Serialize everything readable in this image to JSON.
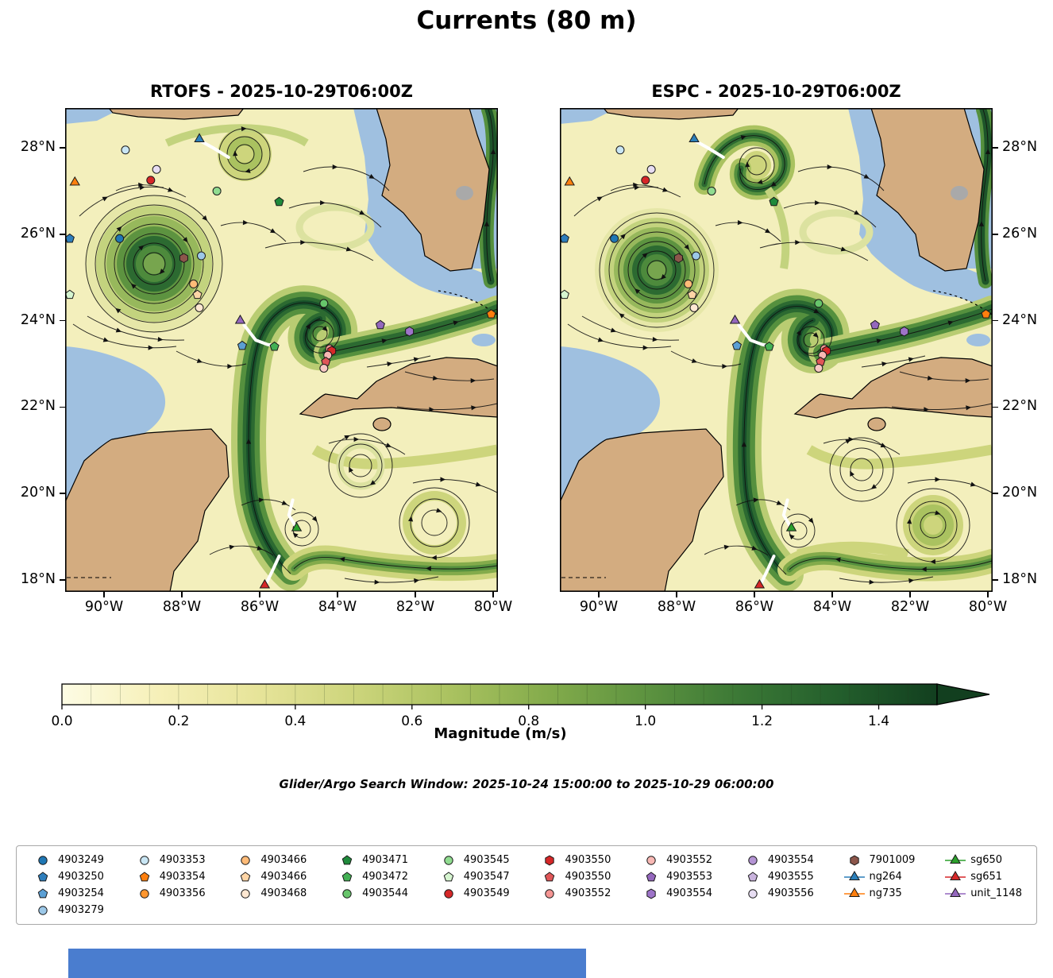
{
  "title": "Currents (80 m)",
  "panels": [
    {
      "id": "rtofs",
      "title": "RTOFS - 2025-10-29T06:00Z"
    },
    {
      "id": "espc",
      "title": "ESPC - 2025-10-29T06:00Z"
    }
  ],
  "axes": {
    "lon_ticks": [
      {
        "label": "90°W",
        "lon": -90
      },
      {
        "label": "88°W",
        "lon": -88
      },
      {
        "label": "86°W",
        "lon": -86
      },
      {
        "label": "84°W",
        "lon": -84
      },
      {
        "label": "82°W",
        "lon": -82
      },
      {
        "label": "80°W",
        "lon": -80
      }
    ],
    "lat_ticks": [
      {
        "label": "28°N",
        "lat": 28
      },
      {
        "label": "26°N",
        "lat": 26
      },
      {
        "label": "24°N",
        "lat": 24
      },
      {
        "label": "22°N",
        "lat": 22
      },
      {
        "label": "20°N",
        "lat": 20
      },
      {
        "label": "18°N",
        "lat": 18
      }
    ]
  },
  "colorbar": {
    "label": "Magnitude (m/s)",
    "vmin": 0.0,
    "vmax": 1.5,
    "ticks": [
      {
        "label": "0.0",
        "value": 0.0
      },
      {
        "label": "0.2",
        "value": 0.2
      },
      {
        "label": "0.4",
        "value": 0.4
      },
      {
        "label": "0.6",
        "value": 0.6
      },
      {
        "label": "0.8",
        "value": 0.8
      },
      {
        "label": "1.0",
        "value": 1.0
      },
      {
        "label": "1.2",
        "value": 1.2
      },
      {
        "label": "1.4",
        "value": 1.4
      }
    ],
    "colors": [
      "#fdfce4",
      "#f6f0b8",
      "#e7e49a",
      "#cdd57c",
      "#aac260",
      "#83ab4b",
      "#5d9340",
      "#3a7735",
      "#235e2c",
      "#123f1f"
    ]
  },
  "search_window": "Glider/Argo Search Window: 2025-10-24 15:00:00 to 2025-10-29 06:00:00",
  "map_colors": {
    "ocean_mask": "#9fc0e0",
    "land": "#d3ac80",
    "lake": "#a9a9a9",
    "low_speed": "#f3efbc",
    "high_speed": "#17502a"
  },
  "legend": {
    "columns": [
      [
        {
          "label": "4903249",
          "marker": "circle",
          "color": "#1f77b4"
        },
        {
          "label": "4903250",
          "marker": "pentagon",
          "color": "#2e7ebc"
        },
        {
          "label": "4903254",
          "marker": "pentagon",
          "color": "#5b9fd4"
        },
        {
          "label": "4903279",
          "marker": "circle",
          "color": "#9cc8e8"
        }
      ],
      [
        {
          "label": "4903353",
          "marker": "circle",
          "color": "#c9e6f4"
        },
        {
          "label": "4903354",
          "marker": "pentagon",
          "color": "#ff7f0e"
        },
        {
          "label": "4903356",
          "marker": "circle",
          "color": "#ff962e"
        }
      ],
      [
        {
          "label": "4903466",
          "marker": "circle",
          "color": "#ffbb78"
        },
        {
          "label": "4903466",
          "marker": "pentagon",
          "color": "#ffd5a6"
        },
        {
          "label": "4903468",
          "marker": "circle",
          "color": "#ffe8d2"
        }
      ],
      [
        {
          "label": "4903471",
          "marker": "pentagon",
          "color": "#1f8a3b"
        },
        {
          "label": "4903472",
          "marker": "pentagon",
          "color": "#43b054"
        },
        {
          "label": "4903544",
          "marker": "circle",
          "color": "#67c56b"
        }
      ],
      [
        {
          "label": "4903545",
          "marker": "circle",
          "color": "#90dc90"
        },
        {
          "label": "4903547",
          "marker": "pentagon",
          "color": "#d6f5d0"
        },
        {
          "label": "4903549",
          "marker": "circle",
          "color": "#d62728"
        }
      ],
      [
        {
          "label": "4903550",
          "marker": "hexagon",
          "color": "#d62728"
        },
        {
          "label": "4903550",
          "marker": "pentagon",
          "color": "#e05658"
        },
        {
          "label": "4903552",
          "marker": "circle",
          "color": "#f59593"
        }
      ],
      [
        {
          "label": "4903552",
          "marker": "circle",
          "color": "#f8b8b4"
        },
        {
          "label": "4903553",
          "marker": "pentagon",
          "color": "#9467bd"
        },
        {
          "label": "4903554",
          "marker": "hexagon",
          "color": "#9e74c9"
        }
      ],
      [
        {
          "label": "4903554",
          "marker": "circle",
          "color": "#b494d4"
        },
        {
          "label": "4903555",
          "marker": "pentagon",
          "color": "#c9b3dd"
        },
        {
          "label": "4903556",
          "marker": "circle",
          "color": "#e7ddf2"
        }
      ],
      [
        {
          "label": "7901009",
          "marker": "hexagon",
          "color": "#8c564b"
        },
        {
          "label": "ng264",
          "marker": "triangle",
          "color": "#2b7fba",
          "line": true
        },
        {
          "label": "ng735",
          "marker": "triangle",
          "color": "#ff7f0e",
          "line": true
        }
      ],
      [
        {
          "label": "sg650",
          "marker": "triangle",
          "color": "#2ca02c",
          "line": true
        },
        {
          "label": "sg651",
          "marker": "triangle",
          "color": "#d62728",
          "line": true
        },
        {
          "label": "unit_1148",
          "marker": "triangle",
          "color": "#9467bd",
          "line": true
        }
      ]
    ]
  },
  "chart_data": {
    "type": "streamplot-map",
    "title": "Currents (80 m)",
    "depth_m": 80,
    "models": [
      {
        "name": "RTOFS",
        "valid_time": "2025-10-29T06:00Z"
      },
      {
        "name": "ESPC",
        "valid_time": "2025-10-29T06:00Z"
      }
    ],
    "lon_range_deg_w": [
      91,
      80
    ],
    "lat_range_deg_n": [
      17.7,
      28.9
    ],
    "magnitude_scale": {
      "min": 0.0,
      "max": 1.5,
      "units": "m/s"
    },
    "markers": [
      {
        "id": "4903353",
        "marker": "circle",
        "color": "#c9e6f4",
        "lon": -89.45,
        "lat": 27.95
      },
      {
        "id": "ng264",
        "marker": "triangle",
        "color": "#2b7fba",
        "lon": -87.55,
        "lat": 28.2
      },
      {
        "id": "ng735",
        "marker": "triangle",
        "color": "#ff7f0e",
        "lon": -90.75,
        "lat": 27.2
      },
      {
        "id": "4903549",
        "marker": "circle",
        "color": "#d62728",
        "lon": -88.8,
        "lat": 27.25
      },
      {
        "id": "4903556",
        "marker": "circle",
        "color": "#e7ddf2",
        "lon": -88.65,
        "lat": 27.5
      },
      {
        "id": "4903545",
        "marker": "circle",
        "color": "#90dc90",
        "lon": -87.1,
        "lat": 27.0
      },
      {
        "id": "4903471",
        "marker": "pentagon",
        "color": "#1f8a3b",
        "lon": -85.5,
        "lat": 26.75
      },
      {
        "id": "4903249",
        "marker": "circle",
        "color": "#1f77b4",
        "lon": -89.6,
        "lat": 25.9
      },
      {
        "id": "4903250",
        "marker": "pentagon",
        "color": "#2e7ebc",
        "lon": -90.88,
        "lat": 25.9
      },
      {
        "id": "7901009",
        "marker": "hexagon",
        "color": "#8c564b",
        "lon": -87.95,
        "lat": 25.45
      },
      {
        "id": "4903279",
        "marker": "circle",
        "color": "#9cc8e8",
        "lon": -87.5,
        "lat": 25.5
      },
      {
        "id": "4903466",
        "marker": "circle",
        "color": "#ffbb78",
        "lon": -87.7,
        "lat": 24.85
      },
      {
        "id": "4903466",
        "marker": "pentagon",
        "color": "#ffd5a6",
        "lon": -87.6,
        "lat": 24.6
      },
      {
        "id": "4903468",
        "marker": "circle",
        "color": "#ffe8d2",
        "lon": -87.55,
        "lat": 24.3
      },
      {
        "id": "4903547",
        "marker": "pentagon",
        "color": "#d6f5d0",
        "lon": -90.88,
        "lat": 24.6
      },
      {
        "id": "unit_1148",
        "marker": "triangle",
        "color": "#9467bd",
        "lon": -86.5,
        "lat": 24.0
      },
      {
        "id": "4903254",
        "marker": "pentagon",
        "color": "#5b9fd4",
        "lon": -86.45,
        "lat": 23.42
      },
      {
        "id": "4903472",
        "marker": "pentagon",
        "color": "#43b054",
        "lon": -85.62,
        "lat": 23.4
      },
      {
        "id": "4903544",
        "marker": "circle",
        "color": "#67c56b",
        "lon": -84.35,
        "lat": 24.4
      },
      {
        "id": "4903552",
        "marker": "circle",
        "color": "#f59593",
        "lon": -84.2,
        "lat": 23.35
      },
      {
        "id": "4903550",
        "marker": "hexagon",
        "color": "#d62728",
        "lon": -84.15,
        "lat": 23.3
      },
      {
        "id": "4903552",
        "marker": "circle",
        "color": "#f8b8b4",
        "lon": -84.25,
        "lat": 23.2
      },
      {
        "id": "4903550",
        "marker": "pentagon",
        "color": "#e05658",
        "lon": -84.3,
        "lat": 23.05
      },
      {
        "id": "4903552",
        "marker": "circle",
        "color": "#f8c8c4",
        "lon": -84.35,
        "lat": 22.9
      },
      {
        "id": "4903553",
        "marker": "pentagon",
        "color": "#9467bd",
        "lon": -82.9,
        "lat": 23.9
      },
      {
        "id": "4903554",
        "marker": "hexagon",
        "color": "#9e74c9",
        "lon": -82.15,
        "lat": 23.75
      },
      {
        "id": "4903354",
        "marker": "pentagon",
        "color": "#ff7f0e",
        "lon": -80.05,
        "lat": 24.15
      },
      {
        "id": "sg650",
        "marker": "triangle",
        "color": "#2ca02c",
        "lon": -85.05,
        "lat": 19.2
      },
      {
        "id": "sg651",
        "marker": "triangle",
        "color": "#d62728",
        "lon": -85.87,
        "lat": 17.88
      }
    ],
    "tracks": [
      {
        "id": "ng264",
        "points": [
          [
            -87.5,
            28.15
          ],
          [
            -87.2,
            28.0
          ],
          [
            -86.8,
            27.78
          ]
        ]
      },
      {
        "id": "unit_1148",
        "points": [
          [
            -86.4,
            23.9
          ],
          [
            -86.1,
            23.55
          ],
          [
            -85.8,
            23.45
          ],
          [
            -85.6,
            23.42
          ]
        ]
      },
      {
        "id": "sg650",
        "points": [
          [
            -85.15,
            19.85
          ],
          [
            -85.25,
            19.5
          ],
          [
            -85.05,
            19.2
          ]
        ]
      },
      {
        "id": "sg651",
        "points": [
          [
            -85.5,
            18.55
          ],
          [
            -85.68,
            18.2
          ],
          [
            -85.83,
            17.92
          ]
        ]
      }
    ]
  },
  "footer_bar": {
    "color": "#4a7dcf"
  }
}
